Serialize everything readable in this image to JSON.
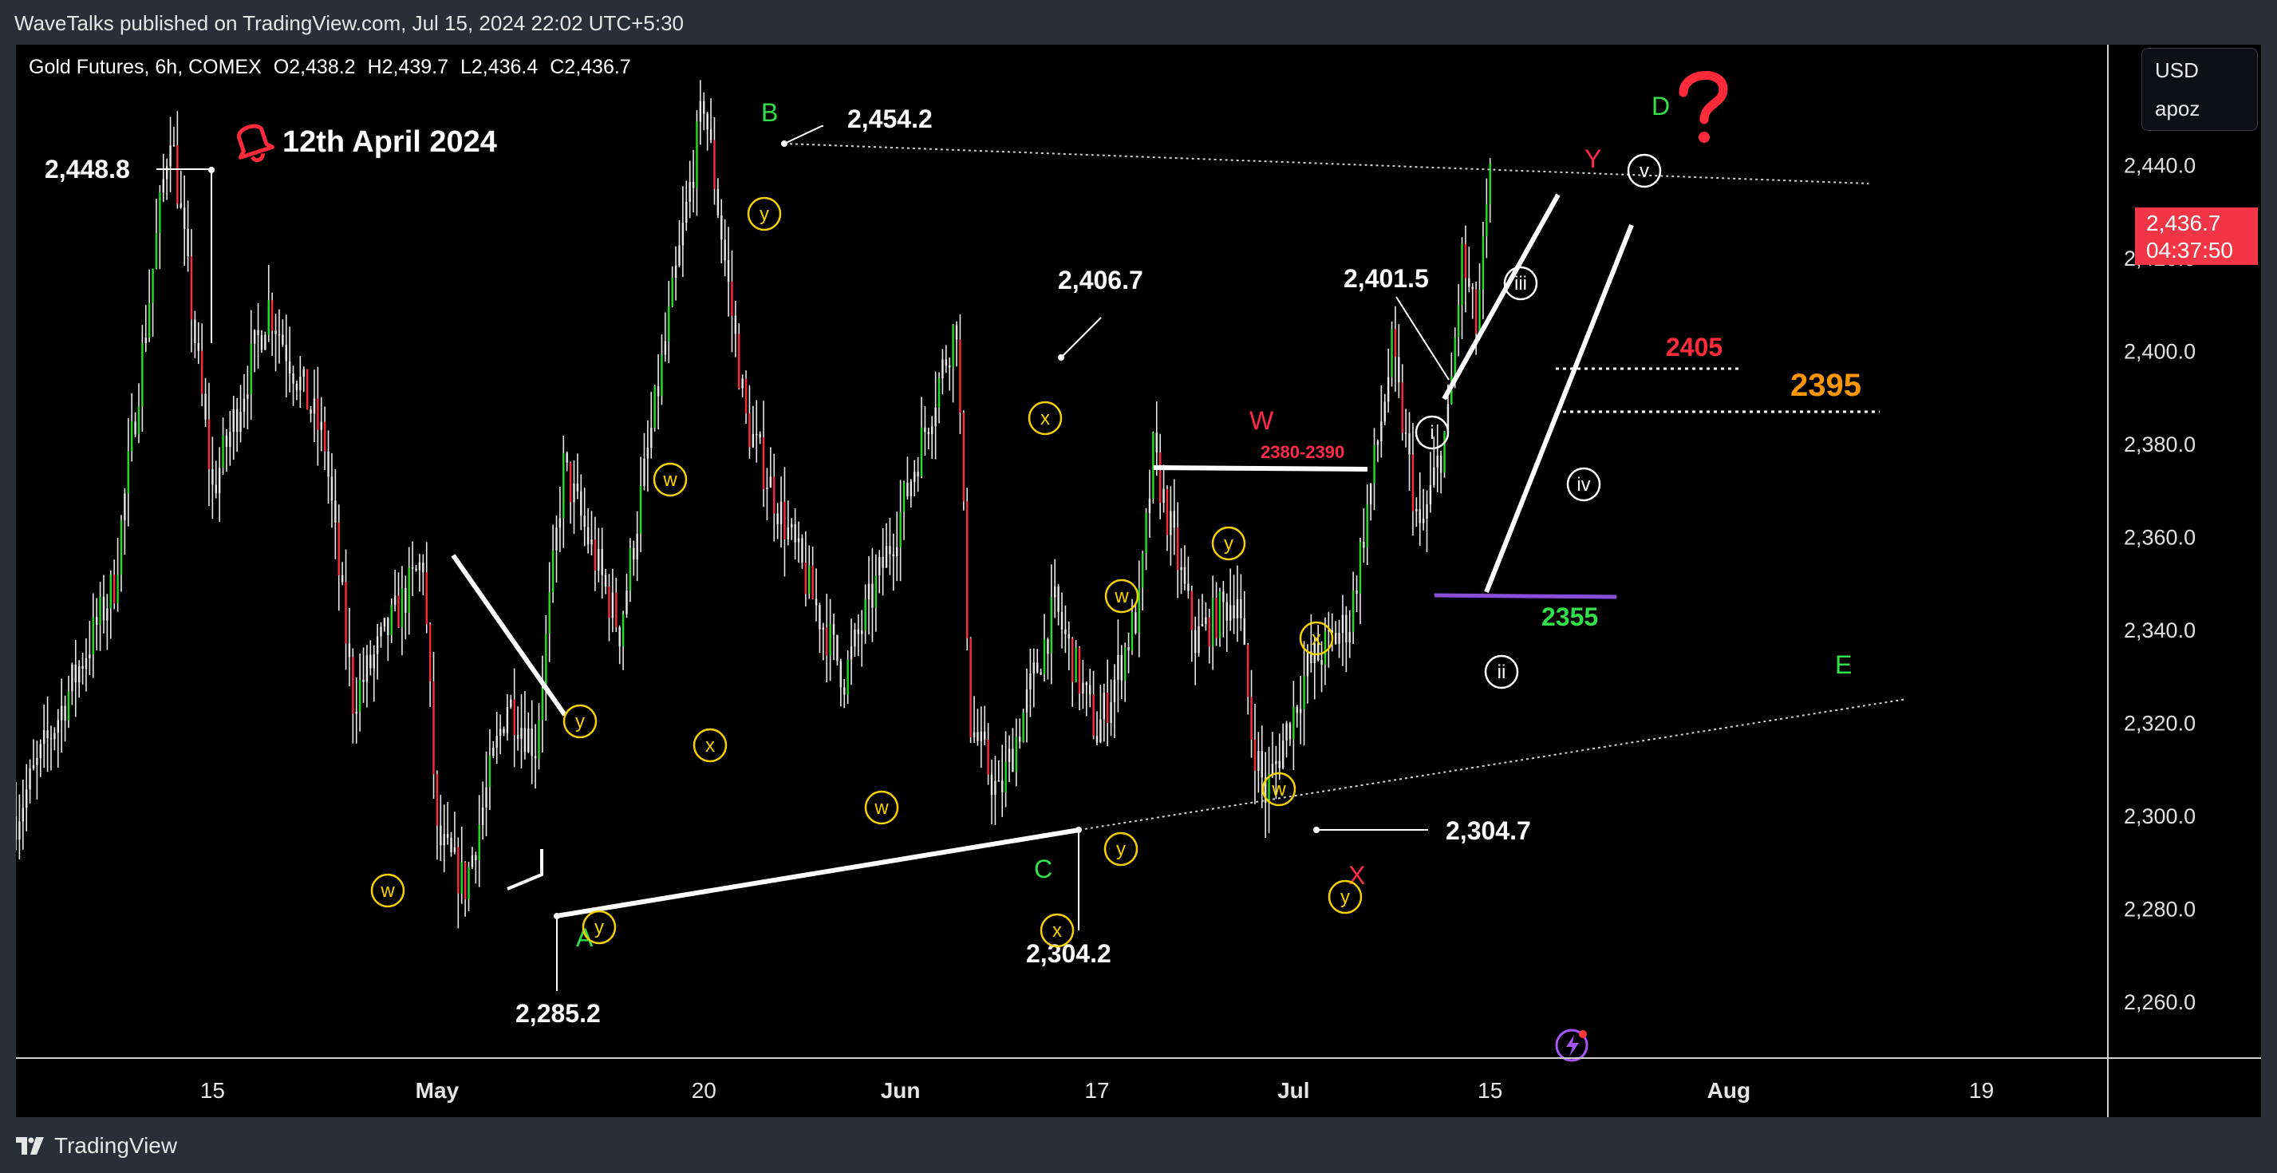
{
  "header": {
    "published": "WaveTalks published on TradingView.com, Jul 15, 2024 22:02 UTC+5:30"
  },
  "legend": {
    "symbol": "Gold Futures, 6h, COMEX",
    "open": "O2,438.2",
    "high": "H2,439.7",
    "low": "L2,436.4",
    "close": "C2,436.7"
  },
  "currency_box": {
    "currency": "USD",
    "mode": "apoz"
  },
  "price_tag": {
    "price": "2,436.7",
    "countdown": "04:37:50"
  },
  "footer": {
    "brand": "TradingView"
  },
  "colors": {
    "up": "#22dd22",
    "down": "#ff2a3a",
    "wick": "#e8e8e8",
    "yellow": "#f7d000",
    "green_label": "#32e04a",
    "red_label": "#ff2a4a",
    "orange": "#ff9800",
    "purple": "#8b4ed8",
    "annotation": "#ffffff"
  },
  "icons": [
    "bell-alert-icon",
    "question-mark-icon",
    "lightning-icon",
    "tradingview-logo-icon"
  ],
  "chart_data": {
    "type": "candlestick",
    "title": "Gold Futures, 6h, COMEX",
    "x_ticks": [
      {
        "label": "15",
        "date": "2024-04-15"
      },
      {
        "label": "May",
        "date": "2024-05-01"
      },
      {
        "label": "20",
        "date": "2024-05-20"
      },
      {
        "label": "Jun",
        "date": "2024-06-03"
      },
      {
        "label": "17",
        "date": "2024-06-17"
      },
      {
        "label": "Jul",
        "date": "2024-07-01"
      },
      {
        "label": "15",
        "date": "2024-07-15"
      },
      {
        "label": "Aug",
        "date": "2024-08-01"
      },
      {
        "label": "19",
        "date": "2024-08-19"
      }
    ],
    "y_ticks": [
      2260,
      2280,
      2300,
      2320,
      2340,
      2360,
      2380,
      2400,
      2420,
      2440
    ],
    "y_tick_labels": [
      "2,260.0",
      "2,280.0",
      "2,300.0",
      "2,320.0",
      "2,340.0",
      "2,360.0",
      "2,380.0",
      "2,400.0",
      "2,420.0",
      "2,440.0"
    ],
    "ylim": [
      2248,
      2466
    ],
    "xlim": [
      "2024-04-01",
      "2024-08-28"
    ],
    "grid": false,
    "last_price": 2436.7,
    "anchors": [
      {
        "date": "2024-04-01",
        "price": 2300
      },
      {
        "date": "2024-04-08",
        "price": 2350
      },
      {
        "date": "2024-04-12",
        "price": 2448.8
      },
      {
        "date": "2024-04-15",
        "price": 2370
      },
      {
        "date": "2024-04-19",
        "price": 2410
      },
      {
        "date": "2024-04-23",
        "price": 2380
      },
      {
        "date": "2024-04-25",
        "price": 2325
      },
      {
        "date": "2024-04-30",
        "price": 2355
      },
      {
        "date": "2024-05-01",
        "price": 2295
      },
      {
        "date": "2024-05-03",
        "price": 2285.2
      },
      {
        "date": "2024-05-06",
        "price": 2325
      },
      {
        "date": "2024-05-08",
        "price": 2315
      },
      {
        "date": "2024-05-10",
        "price": 2375
      },
      {
        "date": "2024-05-14",
        "price": 2340
      },
      {
        "date": "2024-05-20",
        "price": 2454.2
      },
      {
        "date": "2024-05-23",
        "price": 2385
      },
      {
        "date": "2024-05-28",
        "price": 2345
      },
      {
        "date": "2024-05-30",
        "price": 2330
      },
      {
        "date": "2024-06-03",
        "price": 2365
      },
      {
        "date": "2024-06-07",
        "price": 2406.7
      },
      {
        "date": "2024-06-08",
        "price": 2320
      },
      {
        "date": "2024-06-10",
        "price": 2304.2
      },
      {
        "date": "2024-06-14",
        "price": 2345
      },
      {
        "date": "2024-06-17",
        "price": 2318
      },
      {
        "date": "2024-06-20",
        "price": 2345
      },
      {
        "date": "2024-06-21",
        "price": 2378
      },
      {
        "date": "2024-06-24",
        "price": 2338
      },
      {
        "date": "2024-06-27",
        "price": 2348
      },
      {
        "date": "2024-06-28",
        "price": 2318
      },
      {
        "date": "2024-06-29",
        "price": 2304.7
      },
      {
        "date": "2024-07-02",
        "price": 2332
      },
      {
        "date": "2024-07-05",
        "price": 2342
      },
      {
        "date": "2024-07-08",
        "price": 2400
      },
      {
        "date": "2024-07-10",
        "price": 2360
      },
      {
        "date": "2024-07-12",
        "price": 2385
      },
      {
        "date": "2024-07-13",
        "price": 2420
      },
      {
        "date": "2024-07-14",
        "price": 2405
      },
      {
        "date": "2024-07-15",
        "price": 2436.7
      }
    ],
    "price_labels": [
      {
        "text": "2,448.8",
        "date": "2024-04-12",
        "price": 2448.8
      },
      {
        "text": "2,454.2",
        "date": "2024-05-20",
        "price": 2454.2
      },
      {
        "text": "2,285.2",
        "date": "2024-05-03",
        "price": 2285.2
      },
      {
        "text": "2,406.7",
        "date": "2024-06-07",
        "price": 2406.7
      },
      {
        "text": "2,304.2",
        "date": "2024-06-10",
        "price": 2304.2
      },
      {
        "text": "2,304.7",
        "date": "2024-06-29",
        "price": 2304.7
      },
      {
        "text": "2,401.5",
        "date": "2024-07-08",
        "price": 2401.5
      }
    ],
    "annotations": {
      "date_note": "12th April 2024",
      "wave_letters": [
        {
          "text": "A",
          "color": "green"
        },
        {
          "text": "B",
          "color": "green"
        },
        {
          "text": "C",
          "color": "green"
        },
        {
          "text": "D",
          "color": "green"
        },
        {
          "text": "E",
          "color": "green"
        },
        {
          "text": "W",
          "color": "red"
        },
        {
          "text": "X",
          "color": "red"
        },
        {
          "text": "Y",
          "color": "red"
        }
      ],
      "yellow_circles": [
        "y",
        "w",
        "x",
        "y",
        "w",
        "x",
        "w",
        "y",
        "x",
        "y",
        "w",
        "y",
        "x",
        "w",
        "y"
      ],
      "white_circles": [
        "i",
        "ii",
        "iii",
        "iv",
        "v"
      ],
      "zone_label": "2380-2390",
      "levels": [
        {
          "text": "2405",
          "price": 2405,
          "color": "red"
        },
        {
          "text": "2395",
          "price": 2395,
          "color": "orange"
        },
        {
          "text": "2355",
          "price": 2355,
          "color": "green"
        }
      ]
    }
  }
}
